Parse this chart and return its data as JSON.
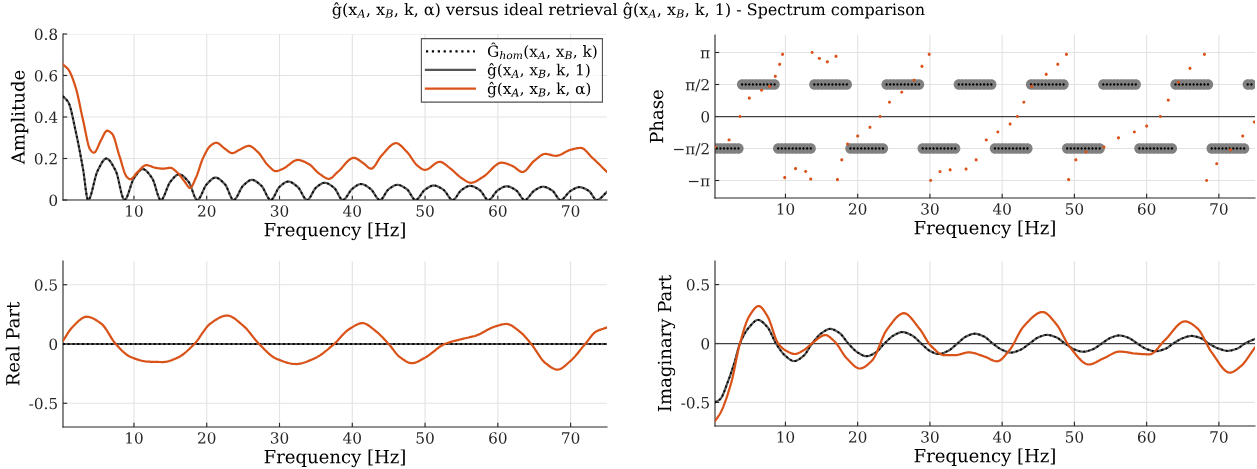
{
  "chart_data": [
    {
      "type": "line",
      "title": "ĝ(x$_{A}$, x$_{B}$, k, α) versus ideal retrieval ĝ(x$_{A}$, x$_{B}$, k, 1) - Spectrum comparison",
      "xlabel": "Frequency [Hz]",
      "ylabel": "Amplitude",
      "xlim": [
        0.25,
        75
      ],
      "xticks": [
        10,
        20,
        30,
        40,
        50,
        60,
        70
      ],
      "ylim": [
        0,
        0.8
      ],
      "yticks": [
        0,
        0.2,
        0.4,
        0.6,
        0.8
      ],
      "grid": true,
      "legend": "top right",
      "series": [
        {
          "name": "ĝ(x$_{A}$, x$_{B}$, k, 1)",
          "color": "#555555",
          "line_style": "solid",
          "x": [
            0.25,
            1,
            2,
            3,
            3.7,
            5,
            6.2,
            7.5,
            8.7,
            10,
            11.2,
            12.5,
            13.7,
            15,
            16.2,
            17.5,
            18.7,
            20,
            21.2,
            22.5,
            23.7,
            25,
            26.2,
            27.5,
            28.8,
            30,
            31.2,
            32.5,
            33.8,
            35,
            36.2,
            37.5,
            38.7,
            40,
            41.2,
            42.5,
            43.8,
            45,
            46.2,
            47.5,
            48.7,
            50,
            51.2,
            52.5,
            53.8,
            55,
            56.2,
            57.5,
            58.7,
            60,
            61.2,
            62.5,
            63.7,
            65,
            66.2,
            67.5,
            68.6,
            70,
            71.2,
            72.5,
            73.6,
            75
          ],
          "values": [
            0.5,
            0.47,
            0.33,
            0.15,
            0,
            0.14,
            0.2,
            0.14,
            0,
            0.105,
            0.149,
            0.105,
            0,
            0.088,
            0.124,
            0.088,
            0,
            0.076,
            0.108,
            0.076,
            0,
            0.069,
            0.097,
            0.069,
            0,
            0.063,
            0.089,
            0.063,
            0,
            0.059,
            0.083,
            0.059,
            0,
            0.054,
            0.077,
            0.054,
            0,
            0.052,
            0.073,
            0.052,
            0,
            0.05,
            0.07,
            0.05,
            0,
            0.048,
            0.068,
            0.048,
            0,
            0.047,
            0.066,
            0.047,
            0,
            0.045,
            0.064,
            0.045,
            0,
            0.044,
            0.062,
            0.044,
            0,
            0.039
          ]
        },
        {
          "name": "Ĝ$_{hom}$(x$_{A}$, x$_{B}$, k)",
          "color": "#000000",
          "line_style": "dotted",
          "x": [
            0.25,
            1,
            2,
            3,
            3.7,
            5,
            6.2,
            7.5,
            8.7,
            10,
            11.2,
            12.5,
            13.7,
            15,
            16.2,
            17.5,
            18.7,
            20,
            21.2,
            22.5,
            23.7,
            25,
            26.2,
            27.5,
            28.8,
            30,
            31.2,
            32.5,
            33.8,
            35,
            36.2,
            37.5,
            38.7,
            40,
            41.2,
            42.5,
            43.8,
            45,
            46.2,
            47.5,
            48.7,
            50,
            51.2,
            52.5,
            53.8,
            55,
            56.2,
            57.5,
            58.7,
            60,
            61.2,
            62.5,
            63.7,
            65,
            66.2,
            67.5,
            68.6,
            70,
            71.2,
            72.5,
            73.6,
            75
          ],
          "values": [
            0.5,
            0.47,
            0.33,
            0.15,
            0,
            0.14,
            0.2,
            0.14,
            0,
            0.105,
            0.149,
            0.105,
            0,
            0.088,
            0.124,
            0.088,
            0,
            0.076,
            0.108,
            0.076,
            0,
            0.069,
            0.097,
            0.069,
            0,
            0.063,
            0.089,
            0.063,
            0,
            0.059,
            0.083,
            0.059,
            0,
            0.054,
            0.077,
            0.054,
            0,
            0.052,
            0.073,
            0.052,
            0,
            0.05,
            0.07,
            0.05,
            0,
            0.048,
            0.068,
            0.048,
            0,
            0.047,
            0.066,
            0.047,
            0,
            0.045,
            0.064,
            0.045,
            0,
            0.044,
            0.062,
            0.044,
            0,
            0.039
          ]
        },
        {
          "name": "ĝ(x$_{A}$, x$_{B}$, k, α)",
          "color": "#d95319",
          "line_style": "solid",
          "x": [
            0.25,
            1,
            2,
            3,
            4,
            4.5,
            5.5,
            6.3,
            7,
            8,
            9,
            9.5,
            10.5,
            11.7,
            13,
            14,
            15,
            16,
            17,
            17.7,
            18.5,
            19.5,
            20.5,
            21.3,
            22.5,
            23.5,
            24.5,
            25.8,
            27,
            28.5,
            29.5,
            30.5,
            32.5,
            34,
            35.5,
            36.8,
            38,
            40.2,
            41.5,
            42.6,
            44,
            46,
            47.5,
            49,
            50,
            52,
            53.5,
            55,
            56.3,
            58,
            60.5,
            62,
            63.4,
            65,
            66.5,
            68,
            70,
            71.4,
            73,
            75
          ],
          "values": [
            0.653,
            0.628,
            0.541,
            0.386,
            0.242,
            0.228,
            0.29,
            0.334,
            0.319,
            0.213,
            0.112,
            0.1,
            0.135,
            0.168,
            0.155,
            0.151,
            0.155,
            0.131,
            0.087,
            0.058,
            0.106,
            0.203,
            0.261,
            0.276,
            0.247,
            0.226,
            0.242,
            0.261,
            0.232,
            0.164,
            0.139,
            0.151,
            0.193,
            0.174,
            0.126,
            0.102,
            0.135,
            0.203,
            0.178,
            0.151,
            0.213,
            0.274,
            0.232,
            0.164,
            0.145,
            0.184,
            0.151,
            0.106,
            0.083,
            0.112,
            0.18,
            0.164,
            0.135,
            0.189,
            0.222,
            0.213,
            0.242,
            0.251,
            0.203,
            0.135
          ]
        }
      ]
    },
    {
      "type": "scatter",
      "xlabel": "Frequency [Hz]",
      "ylabel": "Phase",
      "xlim": [
        0.25,
        75
      ],
      "xticks": [
        10,
        20,
        30,
        40,
        50,
        60,
        70
      ],
      "ylim": [
        -4,
        4
      ],
      "yticks": [
        {
          "value": -3.1416,
          "label": "−π"
        },
        {
          "value": -1.5708,
          "label": "−π/2"
        },
        0,
        {
          "value": 1.5708,
          "label": "π/2"
        },
        {
          "value": 3.1416,
          "label": "π"
        }
      ],
      "grid": true,
      "ref_lines": [
        {
          "axis": "y",
          "value": 0,
          "color": "#404040"
        }
      ],
      "x": [
        0.5,
        1,
        1.5,
        2,
        2.5,
        3,
        3.5,
        4,
        4.5,
        5,
        5.5,
        6,
        6.5,
        7,
        7.5,
        8,
        8.5,
        9,
        9.5,
        10,
        10.5,
        11,
        11.5,
        12,
        12.5,
        13,
        13.5,
        14,
        14.5,
        15,
        15.5,
        16,
        16.5,
        17,
        17.5,
        18,
        18.5,
        19,
        19.5,
        20,
        20.5,
        21,
        21.5,
        22,
        22.5,
        23,
        23.5,
        24,
        24.5,
        25,
        25.5,
        26,
        26.5,
        27,
        27.5,
        28,
        28.5,
        29,
        29.5,
        30,
        30.5,
        31,
        31.5,
        32,
        32.5,
        33,
        33.5,
        34,
        34.5,
        35,
        35.5,
        36,
        36.5,
        37,
        37.5,
        38,
        38.5,
        39,
        39.5,
        40,
        40.5,
        41,
        41.5,
        42,
        42.5,
        43,
        43.5,
        44,
        44.5,
        45,
        45.5,
        46,
        46.5,
        47,
        47.5,
        48,
        48.5,
        49,
        49.5,
        50,
        50.5,
        51,
        51.5,
        52,
        52.5,
        53,
        53.5,
        54,
        54.5,
        55,
        55.5,
        56,
        56.5,
        57,
        57.5,
        58,
        58.5,
        59,
        59.5,
        60,
        60.5,
        61,
        61.5,
        62,
        62.5,
        63,
        63.5,
        64,
        64.5,
        65,
        65.5,
        66,
        66.5,
        67,
        67.5,
        68,
        68.5,
        69,
        69.5,
        70,
        70.5,
        71,
        71.5,
        72,
        72.5,
        73,
        73.5,
        74,
        74.5
      ],
      "series": [
        {
          "color": "#808080",
          "marker": "circle",
          "values": [
            -1.5708,
            -1.5708,
            -1.5708,
            -1.5708,
            -1.5708,
            -1.5708,
            -1.5708,
            1.5708,
            1.5708,
            1.5708,
            1.5708,
            1.5708,
            1.5708,
            1.5708,
            1.5708,
            1.5708,
            1.5708,
            -1.5708,
            -1.5708,
            -1.5708,
            -1.5708,
            -1.5708,
            -1.5708,
            -1.5708,
            -1.5708,
            -1.5708,
            -1.5708,
            1.5708,
            1.5708,
            1.5708,
            1.5708,
            1.5708,
            1.5708,
            1.5708,
            1.5708,
            1.5708,
            1.5708,
            -1.5708,
            -1.5708,
            -1.5708,
            -1.5708,
            -1.5708,
            -1.5708,
            -1.5708,
            -1.5708,
            -1.5708,
            -1.5708,
            1.5708,
            1.5708,
            1.5708,
            1.5708,
            1.5708,
            1.5708,
            1.5708,
            1.5708,
            1.5708,
            1.5708,
            -1.5708,
            -1.5708,
            -1.5708,
            -1.5708,
            -1.5708,
            -1.5708,
            -1.5708,
            -1.5708,
            -1.5708,
            -1.5708,
            1.5708,
            1.5708,
            1.5708,
            1.5708,
            1.5708,
            1.5708,
            1.5708,
            1.5708,
            1.5708,
            1.5708,
            -1.5708,
            -1.5708,
            -1.5708,
            -1.5708,
            -1.5708,
            -1.5708,
            -1.5708,
            -1.5708,
            -1.5708,
            -1.5708,
            1.5708,
            1.5708,
            1.5708,
            1.5708,
            1.5708,
            1.5708,
            1.5708,
            1.5708,
            1.5708,
            1.5708,
            -1.5708,
            -1.5708,
            -1.5708,
            -1.5708,
            -1.5708,
            -1.5708,
            -1.5708,
            -1.5708,
            -1.5708,
            -1.5708,
            1.5708,
            1.5708,
            1.5708,
            1.5708,
            1.5708,
            1.5708,
            1.5708,
            1.5708,
            1.5708,
            1.5708,
            -1.5708,
            -1.5708,
            -1.5708,
            -1.5708,
            -1.5708,
            -1.5708,
            -1.5708,
            -1.5708,
            -1.5708,
            -1.5708,
            1.5708,
            1.5708,
            1.5708,
            1.5708,
            1.5708,
            1.5708,
            1.5708,
            1.5708,
            1.5708,
            1.5708,
            -1.5708,
            -1.5708,
            -1.5708,
            -1.5708,
            -1.5708,
            -1.5708,
            -1.5708,
            -1.5708,
            -1.5708,
            -1.5708,
            1.5708,
            1.5708
          ]
        },
        {
          "color": "#000000",
          "marker": "circle",
          "values": [
            -1.5708,
            -1.5708,
            -1.5708,
            -1.5708,
            -1.5708,
            -1.5708,
            -1.5708,
            1.5708,
            1.5708,
            1.5708,
            1.5708,
            1.5708,
            1.5708,
            1.5708,
            1.5708,
            1.5708,
            1.5708,
            -1.5708,
            -1.5708,
            -1.5708,
            -1.5708,
            -1.5708,
            -1.5708,
            -1.5708,
            -1.5708,
            -1.5708,
            -1.5708,
            1.5708,
            1.5708,
            1.5708,
            1.5708,
            1.5708,
            1.5708,
            1.5708,
            1.5708,
            1.5708,
            1.5708,
            -1.5708,
            -1.5708,
            -1.5708,
            -1.5708,
            -1.5708,
            -1.5708,
            -1.5708,
            -1.5708,
            -1.5708,
            -1.5708,
            1.5708,
            1.5708,
            1.5708,
            1.5708,
            1.5708,
            1.5708,
            1.5708,
            1.5708,
            1.5708,
            1.5708,
            -1.5708,
            -1.5708,
            -1.5708,
            -1.5708,
            -1.5708,
            -1.5708,
            -1.5708,
            -1.5708,
            -1.5708,
            -1.5708,
            1.5708,
            1.5708,
            1.5708,
            1.5708,
            1.5708,
            1.5708,
            1.5708,
            1.5708,
            1.5708,
            1.5708,
            -1.5708,
            -1.5708,
            -1.5708,
            -1.5708,
            -1.5708,
            -1.5708,
            -1.5708,
            -1.5708,
            -1.5708,
            -1.5708,
            1.5708,
            1.5708,
            1.5708,
            1.5708,
            1.5708,
            1.5708,
            1.5708,
            1.5708,
            1.5708,
            1.5708,
            -1.5708,
            -1.5708,
            -1.5708,
            -1.5708,
            -1.5708,
            -1.5708,
            -1.5708,
            -1.5708,
            -1.5708,
            -1.5708,
            1.5708,
            1.5708,
            1.5708,
            1.5708,
            1.5708,
            1.5708,
            1.5708,
            1.5708,
            1.5708,
            1.5708,
            -1.5708,
            -1.5708,
            -1.5708,
            -1.5708,
            -1.5708,
            -1.5708,
            -1.5708,
            -1.5708,
            -1.5708,
            -1.5708,
            1.5708,
            1.5708,
            1.5708,
            1.5708,
            1.5708,
            1.5708,
            1.5708,
            1.5708,
            1.5708,
            1.5708,
            -1.5708,
            -1.5708,
            -1.5708,
            -1.5708,
            -1.5708,
            -1.5708,
            -1.5708,
            -1.5708,
            -1.5708,
            -1.5708,
            1.5708,
            1.5708
          ]
        },
        {
          "color": "#d95319",
          "marker": "circle",
          "x": [
            0.25,
            2.2,
            3.7,
            5,
            6.7,
            7.8,
            8.6,
            9.2,
            9.6,
            9.9,
            11.4,
            12.8,
            13.5,
            13.7,
            14.7,
            15.8,
            17,
            17.2,
            17.8,
            18.6,
            20,
            21.7,
            23.1,
            24.4,
            26.1,
            27.8,
            28.9,
            29.9,
            30.1,
            31.4,
            32.8,
            35,
            36.4,
            37.8,
            39.4,
            41.1,
            42.1,
            43,
            44.1,
            46.1,
            47.7,
            48.9,
            49.2,
            50.2,
            51.6,
            54.1,
            56.1,
            58.3,
            60,
            61.9,
            63,
            64.4,
            66,
            68,
            68.3,
            69.7,
            71.6,
            73.3,
            74.9
          ],
          "values": [
            -1.5,
            -1.15,
            0,
            0.9,
            1.29,
            1.48,
            1.97,
            2.56,
            3.05,
            -3.0,
            -2.56,
            -2.7,
            -3.07,
            3.14,
            2.85,
            2.68,
            2.95,
            -3.1,
            -2.13,
            -1.35,
            -0.96,
            -0.53,
            0,
            0.7,
            1.19,
            1.78,
            2.46,
            3.05,
            -3.14,
            -2.71,
            -2.62,
            -2.58,
            -2.13,
            -1.15,
            -0.76,
            -0.37,
            0,
            0.7,
            1.48,
            2.07,
            2.56,
            3.05,
            -3.1,
            -2.13,
            -1.74,
            -1.5,
            -1.05,
            -0.76,
            -0.47,
            0,
            0.8,
            1.68,
            2.36,
            3.05,
            -3.14,
            -2.32,
            -1.64,
            -0.96,
            -0.27
          ]
        }
      ]
    },
    {
      "type": "line",
      "xlabel": "Frequency [Hz]",
      "ylabel": "Real Part",
      "xlim": [
        0.25,
        75
      ],
      "xticks": [
        10,
        20,
        30,
        40,
        50,
        60,
        70
      ],
      "ylim": [
        -0.7,
        0.7
      ],
      "yticks": [
        {
          "value": -0.5,
          "label": "-0.5"
        },
        0,
        0.5
      ],
      "grid": true,
      "series": [
        {
          "color": "#555555",
          "line_style": "solid",
          "x": [
            0.25,
            75
          ],
          "values": [
            0,
            0
          ]
        },
        {
          "color": "#000000",
          "line_style": "dotted",
          "x": [
            0.25,
            75
          ],
          "values": [
            0,
            0
          ]
        },
        {
          "color": "#d95319",
          "line_style": "solid",
          "x": [
            0.25,
            1.5,
            3.5,
            5.5,
            7.5,
            9.5,
            12,
            14,
            16,
            18.3,
            20.5,
            22.8,
            25,
            27.2,
            29.5,
            32.3,
            35,
            37.5,
            39.5,
            41.4,
            43.3,
            45,
            46.5,
            48.2,
            50,
            52.7,
            55,
            57,
            59.5,
            61.2,
            63,
            64.6,
            66.5,
            68.2,
            70,
            72,
            73.5,
            75
          ],
          "values": [
            0.027,
            0.139,
            0.23,
            0.172,
            0,
            -0.108,
            -0.149,
            -0.152,
            -0.115,
            0,
            0.172,
            0.24,
            0.155,
            0,
            -0.122,
            -0.169,
            -0.115,
            0,
            0.122,
            0.176,
            0.105,
            0,
            -0.108,
            -0.162,
            -0.115,
            0,
            0.041,
            0.071,
            0.145,
            0.169,
            0.105,
            0,
            -0.159,
            -0.216,
            -0.142,
            0,
            0.105,
            0.139
          ]
        }
      ]
    },
    {
      "type": "line",
      "xlabel": "Frequency [Hz]",
      "ylabel": "Imaginary Part",
      "xlim": [
        0.25,
        75
      ],
      "xticks": [
        10,
        20,
        30,
        40,
        50,
        60,
        70
      ],
      "ylim": [
        -0.7,
        0.7
      ],
      "yticks": [
        {
          "value": -0.5,
          "label": "-0.5"
        },
        0,
        0.5
      ],
      "grid": true,
      "ref_lines": [
        {
          "axis": "y",
          "value": 0,
          "color": "#404040"
        }
      ],
      "series": [
        {
          "color": "#555555",
          "line_style": "solid",
          "x": [
            0.25,
            1,
            2,
            3,
            3.7,
            5,
            6.2,
            7.5,
            8.7,
            10,
            11.2,
            12.5,
            13.7,
            15,
            16.2,
            17.5,
            18.7,
            20,
            21.2,
            22.5,
            23.7,
            25,
            26.2,
            27.5,
            28.8,
            30,
            31.2,
            32.5,
            33.8,
            35,
            36.2,
            37.5,
            38.7,
            40,
            41.2,
            42.5,
            43.8,
            45,
            46.2,
            47.5,
            48.7,
            50,
            51.2,
            52.5,
            53.8,
            55,
            56.2,
            57.5,
            58.7,
            60,
            61.2,
            62.5,
            63.7,
            65,
            66.2,
            67.5,
            68.6,
            70,
            71.2,
            72.5,
            73.6,
            75
          ],
          "values": [
            -0.5,
            -0.47,
            -0.33,
            -0.15,
            0,
            0.14,
            0.2,
            0.14,
            0,
            -0.105,
            -0.149,
            -0.105,
            0,
            0.088,
            0.124,
            0.088,
            0,
            -0.076,
            -0.108,
            -0.076,
            0,
            0.069,
            0.097,
            0.069,
            0,
            -0.063,
            -0.089,
            -0.063,
            0,
            0.059,
            0.083,
            0.059,
            0,
            -0.054,
            -0.077,
            -0.054,
            0,
            0.052,
            0.073,
            0.052,
            0,
            -0.05,
            -0.07,
            -0.05,
            0,
            0.048,
            0.068,
            0.048,
            0,
            -0.047,
            -0.066,
            -0.047,
            0,
            0.045,
            0.064,
            0.045,
            0,
            -0.044,
            -0.062,
            -0.044,
            0,
            0.039
          ]
        },
        {
          "color": "#000000",
          "line_style": "dotted",
          "x": [
            0.25,
            1,
            2,
            3,
            3.7,
            5,
            6.2,
            7.5,
            8.7,
            10,
            11.2,
            12.5,
            13.7,
            15,
            16.2,
            17.5,
            18.7,
            20,
            21.2,
            22.5,
            23.7,
            25,
            26.2,
            27.5,
            28.8,
            30,
            31.2,
            32.5,
            33.8,
            35,
            36.2,
            37.5,
            38.7,
            40,
            41.2,
            42.5,
            43.8,
            45,
            46.2,
            47.5,
            48.7,
            50,
            51.2,
            52.5,
            53.8,
            55,
            56.2,
            57.5,
            58.7,
            60,
            61.2,
            62.5,
            63.7,
            65,
            66.2,
            67.5,
            68.6,
            70,
            71.2,
            72.5,
            73.6,
            75
          ],
          "values": [
            -0.5,
            -0.47,
            -0.33,
            -0.15,
            0,
            0.14,
            0.2,
            0.14,
            0,
            -0.105,
            -0.149,
            -0.105,
            0,
            0.088,
            0.124,
            0.088,
            0,
            -0.076,
            -0.108,
            -0.076,
            0,
            0.069,
            0.097,
            0.069,
            0,
            -0.063,
            -0.089,
            -0.063,
            0,
            0.059,
            0.083,
            0.059,
            0,
            -0.054,
            -0.077,
            -0.054,
            0,
            0.052,
            0.073,
            0.052,
            0,
            -0.05,
            -0.07,
            -0.05,
            0,
            0.048,
            0.068,
            0.048,
            0,
            -0.047,
            -0.066,
            -0.047,
            0,
            0.045,
            0.064,
            0.045,
            0,
            -0.044,
            -0.062,
            -0.044,
            0,
            0.039
          ]
        },
        {
          "color": "#d95319",
          "line_style": "solid",
          "x": [
            0.25,
            1,
            2.5,
            3.7,
            5,
            6.3,
            7.5,
            9,
            10,
            11.3,
            12.5,
            14,
            15.5,
            16.8,
            18.5,
            20.3,
            22,
            24,
            26.4,
            28.5,
            30.2,
            32,
            33.5,
            35.4,
            37.5,
            39.3,
            41,
            43,
            45.6,
            47.5,
            49.3,
            52,
            54,
            56.3,
            58.5,
            60.4,
            62.5,
            65.3,
            67,
            69,
            71.5,
            73,
            75
          ],
          "values": [
            -0.658,
            -0.589,
            -0.332,
            0,
            0.233,
            0.318,
            0.233,
            0,
            -0.058,
            -0.089,
            -0.058,
            0.017,
            0.072,
            0.017,
            -0.127,
            -0.212,
            -0.144,
            0.113,
            0.257,
            0.13,
            -0.024,
            -0.099,
            -0.099,
            -0.075,
            -0.11,
            -0.151,
            -0.058,
            0.147,
            0.267,
            0.164,
            -0.024,
            -0.178,
            -0.127,
            -0.068,
            -0.086,
            -0.092,
            0.027,
            0.188,
            0.13,
            -0.075,
            -0.247,
            -0.195,
            -0.034
          ]
        }
      ]
    }
  ]
}
